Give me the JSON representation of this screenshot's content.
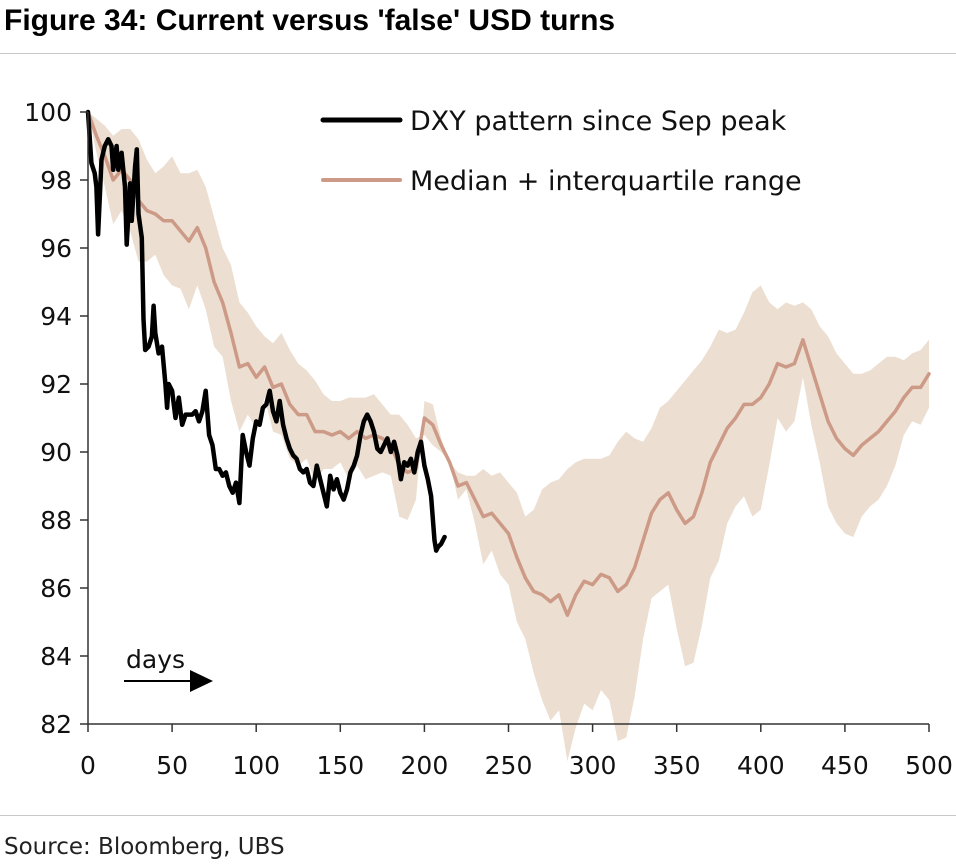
{
  "figure": {
    "title": "Figure 34: Current versus 'false' USD turns",
    "source": "Source: Bloomberg, UBS"
  },
  "colors": {
    "dxy": "#000000",
    "median": "#cc9a87",
    "band": "#ecdfd1",
    "axis": "#333333"
  },
  "chart_data": {
    "type": "line",
    "title": "Figure 34: Current versus 'false' USD turns",
    "xlabel": "",
    "ylabel": "",
    "xlim": [
      0,
      500
    ],
    "ylim": [
      82,
      100
    ],
    "x_ticks": [
      0,
      50,
      100,
      150,
      200,
      250,
      300,
      350,
      400,
      450,
      500
    ],
    "y_ticks": [
      82,
      84,
      86,
      88,
      90,
      92,
      94,
      96,
      98,
      100
    ],
    "grid": false,
    "legend_position": "top-right",
    "annotation": {
      "text": "days",
      "arrow": "right"
    },
    "series": [
      {
        "name": "DXY pattern since Sep peak",
        "style": "line",
        "x": [
          0,
          2,
          4,
          5,
          6,
          8,
          10,
          12,
          14,
          15,
          17,
          18,
          20,
          22,
          23,
          24,
          25,
          26,
          28,
          29,
          30,
          32,
          33,
          34,
          36,
          38,
          39,
          40,
          42,
          44,
          46,
          47,
          48,
          50,
          52,
          54,
          56,
          58,
          60,
          62,
          64,
          66,
          68,
          70,
          72,
          74,
          76,
          78,
          80,
          82,
          84,
          86,
          88,
          90,
          92,
          94,
          96,
          98,
          100,
          102,
          104,
          106,
          108,
          110,
          112,
          114,
          116,
          118,
          120,
          122,
          124,
          126,
          128,
          130,
          132,
          134,
          136,
          138,
          140,
          142,
          144,
          146,
          148,
          150,
          152,
          154,
          156,
          158,
          160,
          162,
          164,
          166,
          168,
          170,
          172,
          174,
          176,
          178,
          180,
          182,
          184,
          186,
          188,
          190,
          192,
          194,
          196,
          198,
          200,
          202,
          204,
          206,
          207,
          208,
          210,
          212
        ],
        "values": [
          100,
          98.5,
          98.2,
          97.8,
          96.4,
          98.6,
          99.0,
          99.2,
          99.0,
          98.3,
          99.0,
          98.3,
          98.8,
          97.8,
          96.1,
          97.0,
          97.9,
          96.8,
          98.4,
          98.9,
          97.0,
          96.3,
          93.9,
          93.0,
          93.1,
          93.4,
          94.3,
          93.5,
          92.9,
          93.1,
          92.0,
          91.3,
          92.0,
          91.8,
          91.0,
          91.6,
          90.8,
          91.1,
          91.1,
          91.1,
          91.2,
          90.9,
          91.2,
          91.8,
          90.5,
          90.2,
          89.5,
          89.5,
          89.3,
          89.4,
          89.0,
          88.8,
          89.1,
          88.5,
          90.5,
          90.0,
          89.6,
          90.4,
          90.9,
          90.8,
          91.3,
          91.4,
          91.8,
          91.2,
          90.9,
          91.5,
          90.8,
          90.4,
          90.1,
          89.9,
          89.8,
          89.5,
          89.4,
          89.5,
          89.1,
          89.0,
          89.6,
          89.2,
          88.8,
          88.4,
          89.3,
          88.9,
          89.2,
          88.8,
          88.6,
          88.9,
          89.4,
          89.6,
          89.9,
          90.5,
          90.9,
          91.1,
          90.9,
          90.6,
          90.1,
          90.0,
          90.2,
          90.4,
          90.0,
          90.3,
          89.9,
          89.2,
          89.7,
          89.6,
          89.8,
          89.4,
          90.0,
          90.3,
          89.6,
          89.2,
          88.7,
          87.4,
          87.1,
          87.2,
          87.3,
          87.5
        ]
      },
      {
        "name": "Median + interquartile range",
        "style": "line",
        "x": [
          0,
          5,
          10,
          15,
          20,
          25,
          30,
          35,
          40,
          45,
          50,
          55,
          60,
          65,
          70,
          75,
          80,
          85,
          90,
          95,
          100,
          105,
          110,
          115,
          120,
          125,
          130,
          135,
          140,
          145,
          150,
          155,
          160,
          165,
          170,
          175,
          180,
          185,
          190,
          195,
          200,
          205,
          210,
          215,
          220,
          225,
          230,
          235,
          240,
          245,
          250,
          255,
          260,
          265,
          270,
          275,
          280,
          285,
          290,
          295,
          300,
          305,
          310,
          315,
          320,
          325,
          330,
          335,
          340,
          345,
          350,
          355,
          360,
          365,
          370,
          375,
          380,
          385,
          390,
          395,
          400,
          405,
          410,
          415,
          420,
          425,
          430,
          435,
          440,
          445,
          450,
          455,
          460,
          465,
          470,
          475,
          480,
          485,
          490,
          495,
          500
        ],
        "values": [
          100,
          99.3,
          98.7,
          98.0,
          98.3,
          98.0,
          97.4,
          97.1,
          97.0,
          96.8,
          96.8,
          96.5,
          96.2,
          96.6,
          96.0,
          95.0,
          94.4,
          93.5,
          92.5,
          92.6,
          92.2,
          92.5,
          91.9,
          92.0,
          91.4,
          91.1,
          91.1,
          90.6,
          90.6,
          90.5,
          90.6,
          90.4,
          90.6,
          90.4,
          90.5,
          90.4,
          90.2,
          89.6,
          89.4,
          89.5,
          91.0,
          90.8,
          90.2,
          89.7,
          89.0,
          89.1,
          88.6,
          88.1,
          88.2,
          87.9,
          87.6,
          86.9,
          86.3,
          85.9,
          85.8,
          85.6,
          85.8,
          85.2,
          85.8,
          86.2,
          86.1,
          86.4,
          86.3,
          85.9,
          86.1,
          86.6,
          87.4,
          88.2,
          88.6,
          88.8,
          88.3,
          87.9,
          88.1,
          88.8,
          89.7,
          90.2,
          90.7,
          91.0,
          91.4,
          91.4,
          91.6,
          92.0,
          92.6,
          92.5,
          92.6,
          93.3,
          92.5,
          91.7,
          90.9,
          90.4,
          90.1,
          89.9,
          90.2,
          90.4,
          90.6,
          90.9,
          91.2,
          91.6,
          91.9,
          91.9,
          92.3
        ]
      },
      {
        "name": "Interquartile range",
        "style": "band",
        "x": [
          0,
          5,
          10,
          15,
          20,
          25,
          30,
          35,
          40,
          45,
          50,
          55,
          60,
          65,
          70,
          75,
          80,
          85,
          90,
          95,
          100,
          105,
          110,
          115,
          120,
          125,
          130,
          135,
          140,
          145,
          150,
          155,
          160,
          165,
          170,
          175,
          180,
          185,
          190,
          195,
          200,
          205,
          210,
          215,
          220,
          225,
          230,
          235,
          240,
          245,
          250,
          255,
          260,
          265,
          270,
          275,
          280,
          285,
          290,
          295,
          300,
          305,
          310,
          315,
          320,
          325,
          330,
          335,
          340,
          345,
          350,
          355,
          360,
          365,
          370,
          375,
          380,
          385,
          390,
          395,
          400,
          405,
          410,
          415,
          420,
          425,
          430,
          435,
          440,
          445,
          450,
          455,
          460,
          465,
          470,
          475,
          480,
          485,
          490,
          495,
          500
        ],
        "upper": [
          100,
          99.8,
          99.6,
          99.3,
          99.5,
          99.5,
          99.2,
          98.6,
          98.2,
          98.4,
          98.7,
          98.2,
          98.2,
          98.3,
          97.8,
          96.9,
          96.0,
          95.5,
          94.4,
          94.1,
          93.7,
          93.4,
          93.2,
          93.5,
          93.0,
          92.6,
          92.4,
          92.1,
          91.7,
          91.5,
          91.5,
          91.6,
          91.6,
          91.6,
          91.7,
          91.4,
          91.1,
          91.1,
          90.8,
          90.4,
          90.5,
          90.2,
          90.0,
          89.7,
          89.4,
          89.3,
          89.3,
          89.5,
          89.3,
          89.4,
          89.1,
          88.8,
          88.1,
          88.3,
          88.9,
          89.1,
          89.2,
          89.5,
          89.7,
          89.8,
          89.8,
          89.8,
          89.9,
          90.3,
          90.6,
          90.4,
          90.3,
          90.7,
          91.3,
          91.5,
          91.8,
          92.1,
          92.4,
          92.7,
          93.1,
          93.6,
          93.5,
          93.6,
          94.1,
          94.7,
          94.9,
          94.4,
          94.2,
          94.4,
          94.3,
          94.4,
          94.2,
          93.7,
          93.4,
          92.9,
          92.6,
          92.3,
          92.3,
          92.4,
          92.6,
          92.8,
          92.8,
          92.7,
          92.9,
          93.0,
          93.3
        ]
      }
    ]
  }
}
